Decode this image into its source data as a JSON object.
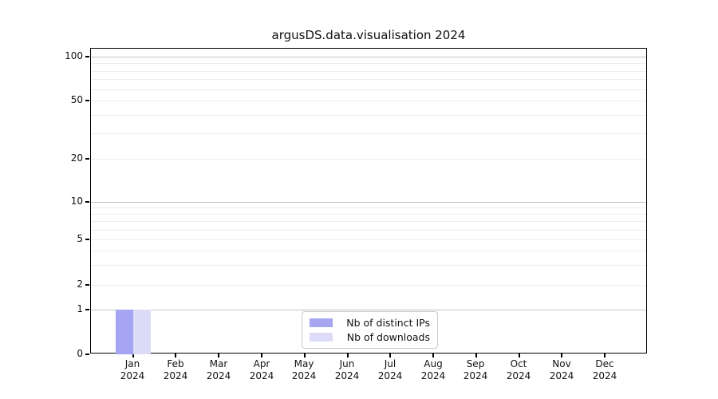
{
  "title": "argusDS.data.visualisation 2024",
  "chart_data": {
    "type": "bar",
    "title": "argusDS.data.visualisation 2024",
    "categories": [
      {
        "month": "Jan",
        "year": "2024"
      },
      {
        "month": "Feb",
        "year": "2024"
      },
      {
        "month": "Mar",
        "year": "2024"
      },
      {
        "month": "Apr",
        "year": "2024"
      },
      {
        "month": "May",
        "year": "2024"
      },
      {
        "month": "Jun",
        "year": "2024"
      },
      {
        "month": "Jul",
        "year": "2024"
      },
      {
        "month": "Aug",
        "year": "2024"
      },
      {
        "month": "Sep",
        "year": "2024"
      },
      {
        "month": "Oct",
        "year": "2024"
      },
      {
        "month": "Nov",
        "year": "2024"
      },
      {
        "month": "Dec",
        "year": "2024"
      }
    ],
    "series": [
      {
        "name": "Nb of distinct IPs",
        "color": "#a5a5f2",
        "values": [
          1,
          0,
          0,
          0,
          0,
          0,
          0,
          0,
          0,
          0,
          0,
          0
        ]
      },
      {
        "name": "Nb of downloads",
        "color": "#dcdcf8",
        "values": [
          1,
          0,
          0,
          0,
          0,
          0,
          0,
          0,
          0,
          0,
          0,
          0
        ]
      }
    ],
    "xlabel": "",
    "ylabel": "",
    "yscale": "symlog",
    "yticks": [
      0,
      1,
      2,
      5,
      10,
      20,
      50,
      100
    ],
    "ylim": [
      0,
      114
    ],
    "grid": "horizontal major+minor",
    "legend_position": "lower center"
  }
}
